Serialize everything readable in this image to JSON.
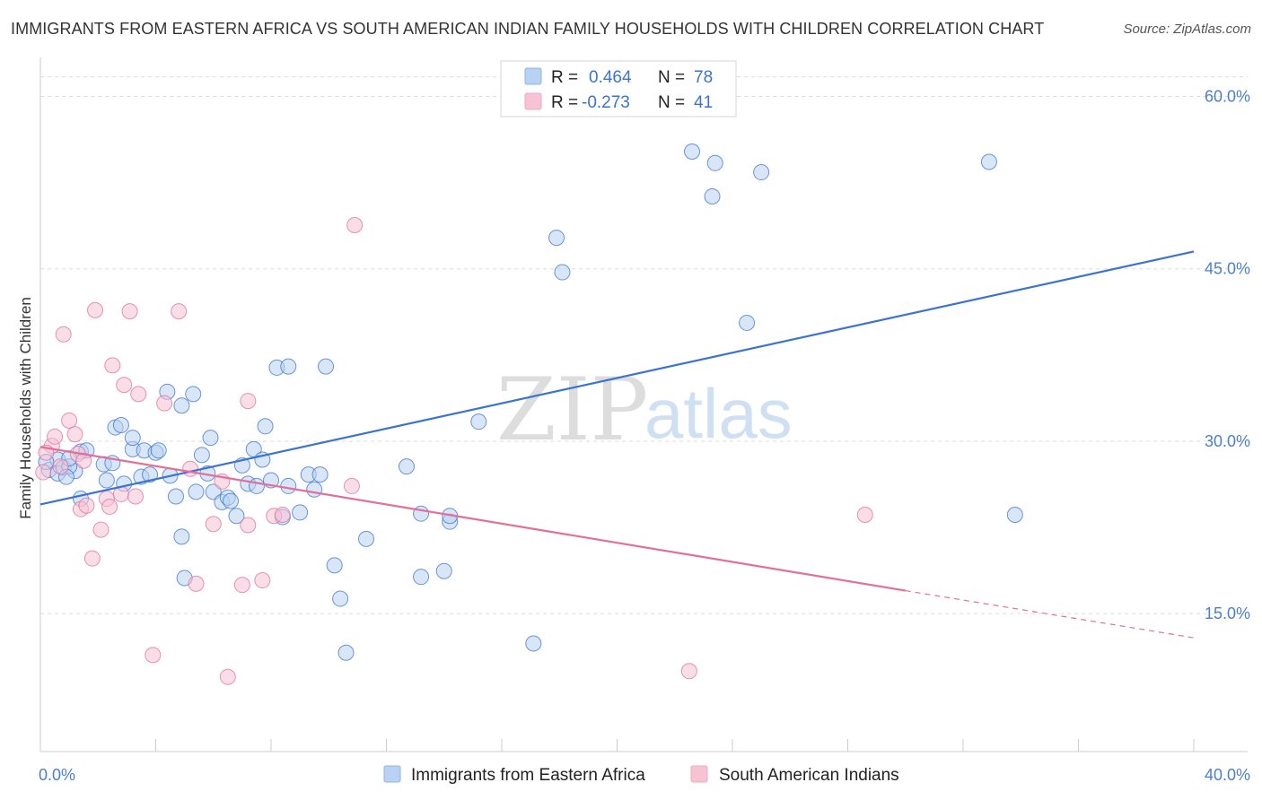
{
  "title": "IMMIGRANTS FROM EASTERN AFRICA VS SOUTH AMERICAN INDIAN FAMILY HOUSEHOLDS WITH CHILDREN CORRELATION CHART",
  "source": "Source: ZipAtlas.com",
  "watermark": {
    "zip": "ZIP",
    "atlas": "atlas"
  },
  "legend": {
    "r_label": "R =",
    "n_label": "N =",
    "rows": [
      {
        "r": "0.464",
        "n": "78",
        "color": "#8db4e8"
      },
      {
        "r": "-0.273",
        "n": "41",
        "color": "#f2a9c1"
      }
    ]
  },
  "chart_data": {
    "type": "scatter",
    "title": "IMMIGRANTS FROM EASTERN AFRICA VS SOUTH AMERICAN INDIAN FAMILY HOUSEHOLDS WITH CHILDREN CORRELATION CHART",
    "xlabel": "",
    "ylabel": "Family Households with Children",
    "xlim": [
      0,
      40
    ],
    "ylim": [
      3,
      63
    ],
    "x_tick_labels": [
      "0.0%",
      "40.0%"
    ],
    "y_ticks": [
      15,
      30,
      45,
      60
    ],
    "y_tick_labels": [
      "15.0%",
      "30.0%",
      "45.0%",
      "60.0%"
    ],
    "grid": true,
    "legend_position": "top-center",
    "series": [
      {
        "name": "Immigrants from Eastern Africa",
        "color": "#3a74d0",
        "fill": "#b9d1f2",
        "trend": {
          "x": [
            0,
            40
          ],
          "y": [
            24.5,
            46.5
          ]
        },
        "points": [
          [
            0.3,
            27.5
          ],
          [
            0.6,
            28.4
          ],
          [
            0.6,
            27.2
          ],
          [
            0.8,
            27.7
          ],
          [
            1.2,
            27.4
          ],
          [
            1.0,
            27.8
          ],
          [
            1.4,
            29.1
          ],
          [
            1.6,
            29.2
          ],
          [
            2.2,
            28.0
          ],
          [
            2.3,
            26.6
          ],
          [
            2.6,
            31.2
          ],
          [
            2.8,
            31.4
          ],
          [
            2.9,
            26.3
          ],
          [
            3.2,
            29.3
          ],
          [
            3.2,
            30.3
          ],
          [
            3.5,
            26.9
          ],
          [
            3.6,
            29.2
          ],
          [
            3.8,
            27.1
          ],
          [
            4.0,
            29.0
          ],
          [
            4.1,
            29.2
          ],
          [
            4.4,
            34.3
          ],
          [
            4.5,
            27.0
          ],
          [
            4.7,
            25.2
          ],
          [
            4.9,
            21.7
          ],
          [
            4.9,
            33.1
          ],
          [
            5.0,
            18.1
          ],
          [
            5.3,
            34.1
          ],
          [
            5.4,
            25.6
          ],
          [
            5.6,
            28.8
          ],
          [
            5.8,
            27.2
          ],
          [
            5.9,
            30.3
          ],
          [
            6.0,
            25.6
          ],
          [
            6.3,
            24.7
          ],
          [
            6.5,
            25.1
          ],
          [
            6.6,
            24.8
          ],
          [
            6.8,
            23.5
          ],
          [
            7.0,
            27.9
          ],
          [
            7.2,
            26.3
          ],
          [
            7.4,
            29.3
          ],
          [
            7.5,
            26.1
          ],
          [
            7.7,
            28.4
          ],
          [
            7.8,
            31.3
          ],
          [
            8.0,
            26.6
          ],
          [
            8.2,
            36.4
          ],
          [
            8.4,
            23.4
          ],
          [
            8.6,
            36.5
          ],
          [
            8.6,
            26.1
          ],
          [
            9.0,
            23.8
          ],
          [
            9.3,
            27.1
          ],
          [
            9.5,
            25.8
          ],
          [
            9.7,
            27.1
          ],
          [
            9.9,
            36.5
          ],
          [
            10.2,
            19.2
          ],
          [
            10.4,
            16.3
          ],
          [
            10.6,
            11.6
          ],
          [
            11.3,
            21.5
          ],
          [
            12.7,
            27.8
          ],
          [
            13.2,
            23.7
          ],
          [
            13.2,
            18.2
          ],
          [
            14.0,
            18.7
          ],
          [
            14.2,
            23.0
          ],
          [
            14.2,
            23.5
          ],
          [
            15.2,
            31.7
          ],
          [
            17.1,
            12.4
          ],
          [
            17.9,
            47.7
          ],
          [
            18.1,
            44.7
          ],
          [
            22.6,
            55.2
          ],
          [
            23.3,
            51.3
          ],
          [
            23.4,
            54.2
          ],
          [
            24.5,
            40.3
          ],
          [
            25.0,
            53.4
          ],
          [
            32.9,
            54.3
          ],
          [
            33.8,
            23.6
          ],
          [
            1.4,
            25.0
          ],
          [
            2.5,
            28.1
          ],
          [
            0.9,
            26.9
          ],
          [
            1.0,
            28.5
          ],
          [
            0.2,
            28.2
          ]
        ]
      },
      {
        "name": "South American Indians",
        "color": "#e26f9a",
        "fill": "#f6c3d3",
        "trend": {
          "x": [
            0,
            30
          ],
          "y": [
            29.5,
            17.0
          ]
        },
        "trend_dashed": {
          "x": [
            30,
            40
          ],
          "y": [
            17.0,
            12.9
          ]
        },
        "points": [
          [
            0.1,
            27.3
          ],
          [
            0.4,
            29.6
          ],
          [
            0.5,
            30.4
          ],
          [
            0.8,
            39.3
          ],
          [
            1.0,
            31.8
          ],
          [
            1.2,
            30.6
          ],
          [
            1.3,
            28.9
          ],
          [
            1.4,
            24.1
          ],
          [
            1.6,
            24.4
          ],
          [
            1.8,
            19.8
          ],
          [
            1.9,
            41.4
          ],
          [
            2.1,
            22.3
          ],
          [
            2.3,
            25.0
          ],
          [
            2.4,
            24.3
          ],
          [
            2.5,
            36.6
          ],
          [
            2.8,
            25.4
          ],
          [
            2.9,
            34.9
          ],
          [
            3.1,
            41.3
          ],
          [
            3.3,
            25.2
          ],
          [
            3.4,
            34.1
          ],
          [
            3.9,
            11.4
          ],
          [
            4.3,
            33.3
          ],
          [
            4.8,
            41.3
          ],
          [
            5.2,
            27.6
          ],
          [
            5.4,
            17.6
          ],
          [
            6.0,
            22.8
          ],
          [
            6.3,
            26.5
          ],
          [
            6.5,
            9.5
          ],
          [
            7.0,
            17.5
          ],
          [
            7.2,
            22.7
          ],
          [
            7.2,
            33.5
          ],
          [
            7.7,
            17.9
          ],
          [
            8.1,
            23.5
          ],
          [
            8.4,
            23.6
          ],
          [
            10.8,
            26.1
          ],
          [
            10.9,
            48.8
          ],
          [
            22.5,
            10.0
          ],
          [
            28.6,
            23.6
          ],
          [
            0.2,
            29.0
          ],
          [
            0.7,
            27.8
          ],
          [
            1.5,
            28.3
          ]
        ]
      }
    ]
  }
}
